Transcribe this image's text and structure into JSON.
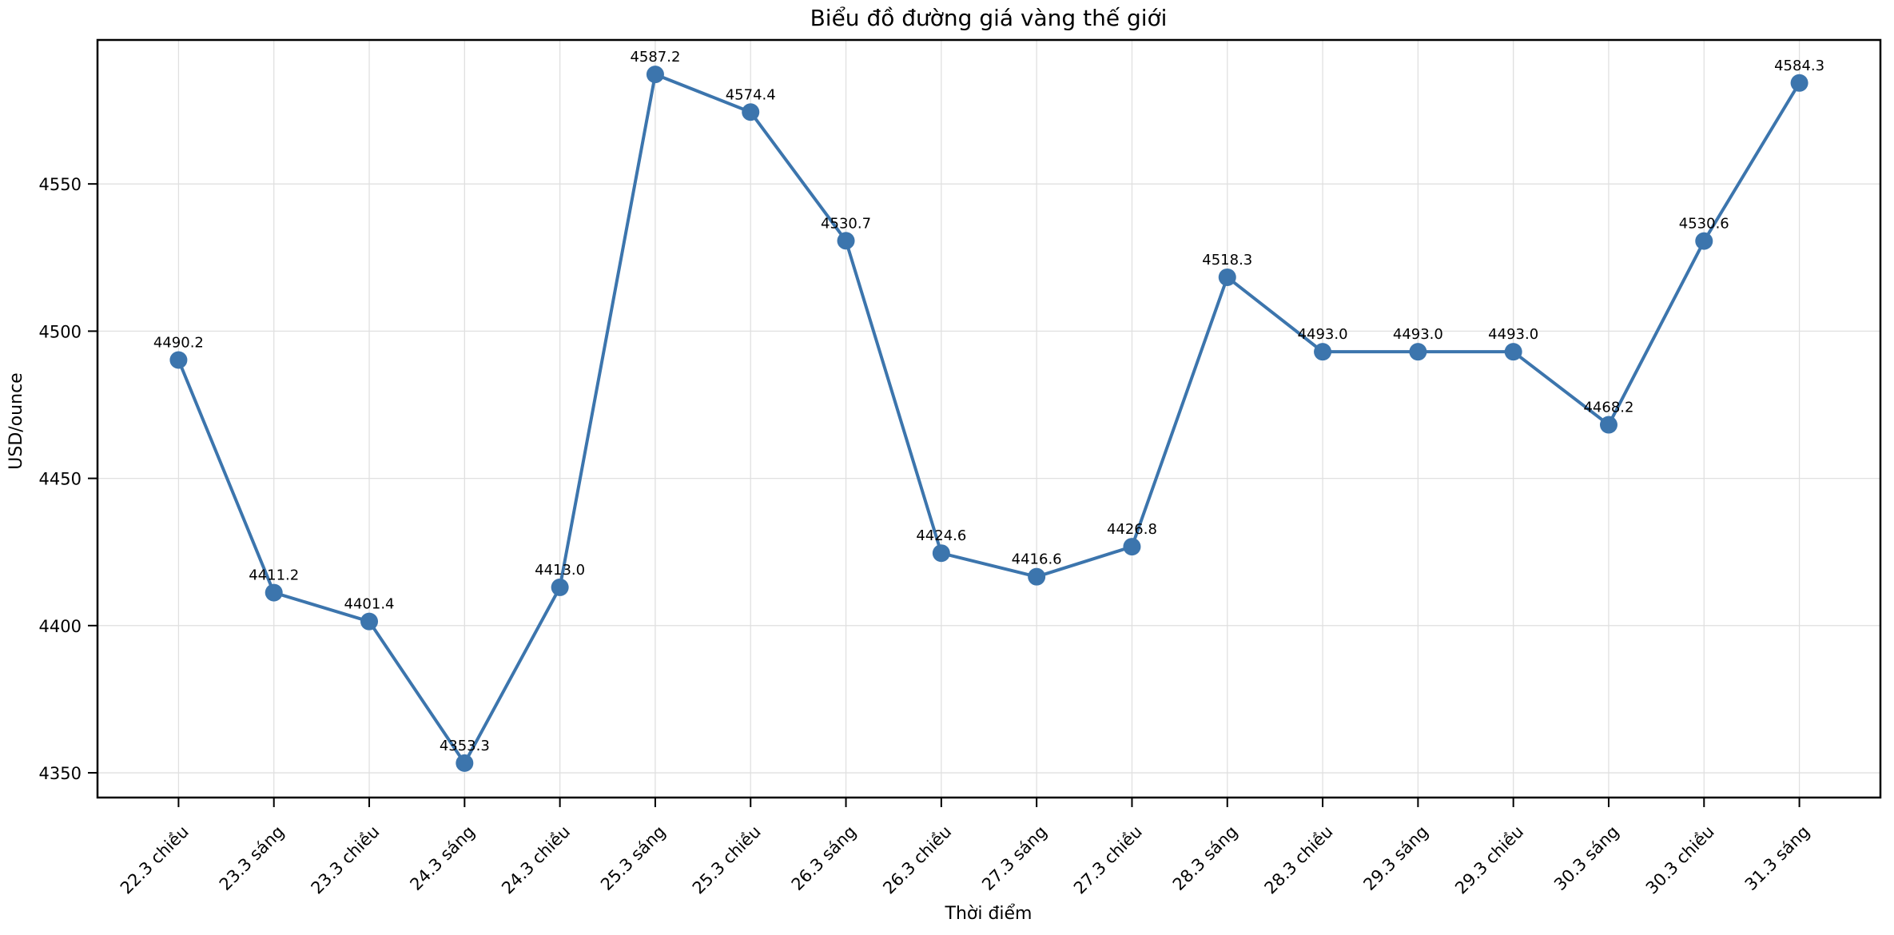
{
  "chart_data": {
    "type": "line",
    "title": "Biểu đồ đường giá vàng thế giới",
    "xlabel": "Thời điểm",
    "ylabel": "USD/ounce",
    "categories": [
      "22.3 chiều",
      "23.3 sáng",
      "23.3 chiều",
      "24.3 sáng",
      "24.3 chiều",
      "25.3 sáng",
      "25.3 chiều",
      "26.3 sáng",
      "26.3 chiều",
      "27.3 sáng",
      "27.3 chiều",
      "28.3 sáng",
      "28.3 chiều",
      "29.3 sáng",
      "29.3 chiều",
      "30.3 sáng",
      "30.3 chiều",
      "31.3 sáng"
    ],
    "values": [
      4490.2,
      4411.2,
      4401.4,
      4353.3,
      4413.0,
      4587.2,
      4574.4,
      4530.7,
      4424.6,
      4416.6,
      4426.8,
      4518.3,
      4493.0,
      4493.0,
      4493.0,
      4468.2,
      4530.6,
      4584.3
    ],
    "point_label_decimals": 1,
    "y_ticks": [
      4350,
      4400,
      4450,
      4500,
      4550
    ],
    "ylim": [
      4341.6,
      4598.9
    ],
    "x_margin": 0.85,
    "x_tick_rotation_deg": 45,
    "grid": true,
    "legend": "none",
    "line_color": "#3c75ad",
    "marker_color": "#3c75ad",
    "grid_color": "#e0e0e0",
    "spine_color": "#000000",
    "text_color": "#000000"
  }
}
